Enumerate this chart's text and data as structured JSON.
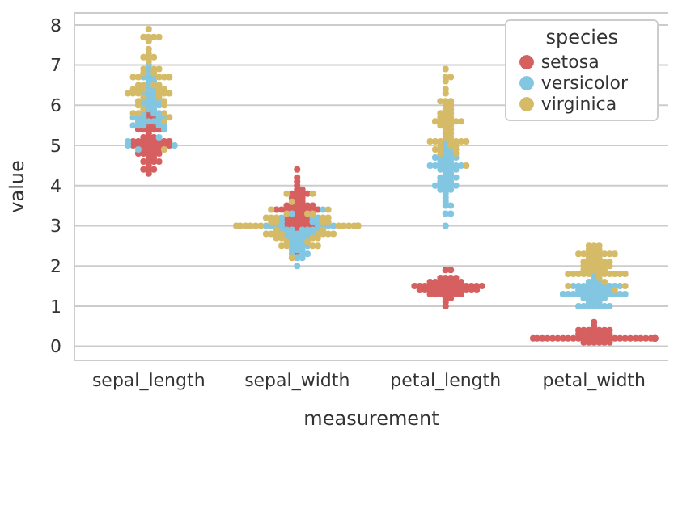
{
  "chart_data": {
    "type": "scatter",
    "xlabel": "measurement",
    "ylabel": "value",
    "legend_title": "species",
    "categories": [
      "sepal_length",
      "sepal_width",
      "petal_length",
      "petal_width"
    ],
    "ylim": [
      -0.35,
      8.3
    ],
    "yticks": [
      0,
      1,
      2,
      3,
      4,
      5,
      6,
      7,
      8
    ],
    "grid": "y",
    "legend": "top right",
    "marker": "circle",
    "series": [
      {
        "name": "setosa",
        "color": "#d65f5f",
        "x": [
          "sepal_length",
          "sepal_length",
          "sepal_length",
          "sepal_length",
          "sepal_length",
          "sepal_length",
          "sepal_length",
          "sepal_length",
          "sepal_length",
          "sepal_length",
          "sepal_length",
          "sepal_length",
          "sepal_length",
          "sepal_length",
          "sepal_length",
          "sepal_length",
          "sepal_length",
          "sepal_length",
          "sepal_length",
          "sepal_length",
          "sepal_length",
          "sepal_length",
          "sepal_length",
          "sepal_length",
          "sepal_length",
          "sepal_length",
          "sepal_length",
          "sepal_length",
          "sepal_length",
          "sepal_length",
          "sepal_length",
          "sepal_length",
          "sepal_length",
          "sepal_length",
          "sepal_length",
          "sepal_length",
          "sepal_length",
          "sepal_length",
          "sepal_length",
          "sepal_length",
          "sepal_length",
          "sepal_length",
          "sepal_length",
          "sepal_length",
          "sepal_length",
          "sepal_length",
          "sepal_length",
          "sepal_length",
          "sepal_length",
          "sepal_length",
          "sepal_width",
          "sepal_width",
          "sepal_width",
          "sepal_width",
          "sepal_width",
          "sepal_width",
          "sepal_width",
          "sepal_width",
          "sepal_width",
          "sepal_width",
          "sepal_width",
          "sepal_width",
          "sepal_width",
          "sepal_width",
          "sepal_width",
          "sepal_width",
          "sepal_width",
          "sepal_width",
          "sepal_width",
          "sepal_width",
          "sepal_width",
          "sepal_width",
          "sepal_width",
          "sepal_width",
          "sepal_width",
          "sepal_width",
          "sepal_width",
          "sepal_width",
          "sepal_width",
          "sepal_width",
          "sepal_width",
          "sepal_width",
          "sepal_width",
          "sepal_width",
          "sepal_width",
          "sepal_width",
          "sepal_width",
          "sepal_width",
          "sepal_width",
          "sepal_width",
          "sepal_width",
          "sepal_width",
          "sepal_width",
          "sepal_width",
          "sepal_width",
          "sepal_width",
          "sepal_width",
          "sepal_width",
          "sepal_width",
          "sepal_width",
          "petal_length",
          "petal_length",
          "petal_length",
          "petal_length",
          "petal_length",
          "petal_length",
          "petal_length",
          "petal_length",
          "petal_length",
          "petal_length",
          "petal_length",
          "petal_length",
          "petal_length",
          "petal_length",
          "petal_length",
          "petal_length",
          "petal_length",
          "petal_length",
          "petal_length",
          "petal_length",
          "petal_length",
          "petal_length",
          "petal_length",
          "petal_length",
          "petal_length",
          "petal_length",
          "petal_length",
          "petal_length",
          "petal_length",
          "petal_length",
          "petal_length",
          "petal_length",
          "petal_length",
          "petal_length",
          "petal_length",
          "petal_length",
          "petal_length",
          "petal_length",
          "petal_length",
          "petal_length",
          "petal_length",
          "petal_length",
          "petal_length",
          "petal_length",
          "petal_length",
          "petal_length",
          "petal_length",
          "petal_length",
          "petal_length",
          "petal_length",
          "petal_width",
          "petal_width",
          "petal_width",
          "petal_width",
          "petal_width",
          "petal_width",
          "petal_width",
          "petal_width",
          "petal_width",
          "petal_width",
          "petal_width",
          "petal_width",
          "petal_width",
          "petal_width",
          "petal_width",
          "petal_width",
          "petal_width",
          "petal_width",
          "petal_width",
          "petal_width",
          "petal_width",
          "petal_width",
          "petal_width",
          "petal_width",
          "petal_width",
          "petal_width",
          "petal_width",
          "petal_width",
          "petal_width",
          "petal_width",
          "petal_width",
          "petal_width",
          "petal_width",
          "petal_width",
          "petal_width",
          "petal_width",
          "petal_width",
          "petal_width",
          "petal_width",
          "petal_width",
          "petal_width",
          "petal_width",
          "petal_width",
          "petal_width",
          "petal_width",
          "petal_width",
          "petal_width",
          "petal_width",
          "petal_width",
          "petal_width"
        ],
        "values": [
          5.1,
          4.9,
          4.7,
          4.6,
          5.0,
          5.4,
          4.6,
          5.0,
          4.4,
          4.9,
          5.4,
          4.8,
          4.8,
          4.3,
          5.8,
          5.7,
          5.4,
          5.1,
          5.7,
          5.1,
          5.4,
          5.1,
          4.6,
          5.1,
          4.8,
          5.0,
          5.0,
          5.2,
          5.2,
          4.7,
          4.8,
          5.4,
          5.2,
          5.5,
          4.9,
          5.0,
          5.5,
          4.9,
          4.4,
          5.1,
          5.0,
          4.5,
          4.4,
          5.0,
          5.1,
          4.8,
          5.1,
          4.6,
          5.3,
          5.0,
          3.5,
          3.0,
          3.2,
          3.1,
          3.6,
          3.9,
          3.4,
          3.4,
          2.9,
          3.1,
          3.7,
          3.4,
          3.0,
          3.0,
          4.0,
          4.4,
          3.9,
          3.5,
          3.8,
          3.8,
          3.4,
          3.7,
          3.6,
          3.3,
          3.4,
          3.0,
          3.4,
          3.5,
          3.4,
          3.2,
          3.1,
          3.4,
          4.1,
          4.2,
          3.1,
          3.2,
          3.5,
          3.1,
          3.0,
          3.4,
          3.5,
          2.3,
          3.2,
          3.5,
          3.8,
          3.0,
          3.8,
          3.2,
          3.7,
          3.3,
          1.4,
          1.4,
          1.3,
          1.5,
          1.4,
          1.7,
          1.4,
          1.5,
          1.4,
          1.5,
          1.5,
          1.6,
          1.4,
          1.1,
          1.2,
          1.5,
          1.3,
          1.4,
          1.7,
          1.5,
          1.7,
          1.5,
          1.0,
          1.7,
          1.9,
          1.6,
          1.6,
          1.5,
          1.4,
          1.6,
          1.6,
          1.5,
          1.5,
          1.4,
          1.5,
          1.2,
          1.3,
          1.5,
          1.3,
          1.5,
          1.3,
          1.3,
          1.3,
          1.6,
          1.9,
          1.4,
          1.6,
          1.4,
          1.5,
          1.4,
          0.2,
          0.2,
          0.2,
          0.2,
          0.2,
          0.4,
          0.3,
          0.2,
          0.2,
          0.1,
          0.2,
          0.2,
          0.1,
          0.1,
          0.2,
          0.4,
          0.4,
          0.3,
          0.3,
          0.3,
          0.2,
          0.4,
          0.2,
          0.5,
          0.2,
          0.2,
          0.4,
          0.2,
          0.2,
          0.2,
          0.2,
          0.4,
          0.1,
          0.2,
          0.1,
          0.2,
          0.2,
          0.1,
          0.2,
          0.2,
          0.3,
          0.3,
          0.2,
          0.6,
          0.4,
          0.3,
          0.2,
          0.2,
          0.2,
          0.2
        ]
      },
      {
        "name": "versicolor",
        "color": "#82c6e2",
        "x": [
          "sepal_length",
          "sepal_length",
          "sepal_length",
          "sepal_length",
          "sepal_length",
          "sepal_length",
          "sepal_length",
          "sepal_length",
          "sepal_length",
          "sepal_length",
          "sepal_length",
          "sepal_length",
          "sepal_length",
          "sepal_length",
          "sepal_length",
          "sepal_length",
          "sepal_length",
          "sepal_length",
          "sepal_length",
          "sepal_length",
          "sepal_length",
          "sepal_length",
          "sepal_length",
          "sepal_length",
          "sepal_length",
          "sepal_length",
          "sepal_length",
          "sepal_length",
          "sepal_length",
          "sepal_length",
          "sepal_length",
          "sepal_length",
          "sepal_length",
          "sepal_length",
          "sepal_length",
          "sepal_length",
          "sepal_length",
          "sepal_length",
          "sepal_length",
          "sepal_length",
          "sepal_length",
          "sepal_length",
          "sepal_length",
          "sepal_length",
          "sepal_length",
          "sepal_length",
          "sepal_length",
          "sepal_length",
          "sepal_length",
          "sepal_length",
          "sepal_width",
          "sepal_width",
          "sepal_width",
          "sepal_width",
          "sepal_width",
          "sepal_width",
          "sepal_width",
          "sepal_width",
          "sepal_width",
          "sepal_width",
          "sepal_width",
          "sepal_width",
          "sepal_width",
          "sepal_width",
          "sepal_width",
          "sepal_width",
          "sepal_width",
          "sepal_width",
          "sepal_width",
          "sepal_width",
          "sepal_width",
          "sepal_width",
          "sepal_width",
          "sepal_width",
          "sepal_width",
          "sepal_width",
          "sepal_width",
          "sepal_width",
          "sepal_width",
          "sepal_width",
          "sepal_width",
          "sepal_width",
          "sepal_width",
          "sepal_width",
          "sepal_width",
          "sepal_width",
          "sepal_width",
          "sepal_width",
          "sepal_width",
          "sepal_width",
          "sepal_width",
          "sepal_width",
          "sepal_width",
          "sepal_width",
          "sepal_width",
          "sepal_width",
          "sepal_width",
          "sepal_width",
          "sepal_width",
          "sepal_width",
          "petal_length",
          "petal_length",
          "petal_length",
          "petal_length",
          "petal_length",
          "petal_length",
          "petal_length",
          "petal_length",
          "petal_length",
          "petal_length",
          "petal_length",
          "petal_length",
          "petal_length",
          "petal_length",
          "petal_length",
          "petal_length",
          "petal_length",
          "petal_length",
          "petal_length",
          "petal_length",
          "petal_length",
          "petal_length",
          "petal_length",
          "petal_length",
          "petal_length",
          "petal_length",
          "petal_length",
          "petal_length",
          "petal_length",
          "petal_length",
          "petal_length",
          "petal_length",
          "petal_length",
          "petal_length",
          "petal_length",
          "petal_length",
          "petal_length",
          "petal_length",
          "petal_length",
          "petal_length",
          "petal_length",
          "petal_length",
          "petal_length",
          "petal_length",
          "petal_length",
          "petal_length",
          "petal_length",
          "petal_length",
          "petal_length",
          "petal_length",
          "petal_width",
          "petal_width",
          "petal_width",
          "petal_width",
          "petal_width",
          "petal_width",
          "petal_width",
          "petal_width",
          "petal_width",
          "petal_width",
          "petal_width",
          "petal_width",
          "petal_width",
          "petal_width",
          "petal_width",
          "petal_width",
          "petal_width",
          "petal_width",
          "petal_width",
          "petal_width",
          "petal_width",
          "petal_width",
          "petal_width",
          "petal_width",
          "petal_width",
          "petal_width",
          "petal_width",
          "petal_width",
          "petal_width",
          "petal_width",
          "petal_width",
          "petal_width",
          "petal_width",
          "petal_width",
          "petal_width",
          "petal_width",
          "petal_width",
          "petal_width",
          "petal_width",
          "petal_width",
          "petal_width",
          "petal_width",
          "petal_width",
          "petal_width",
          "petal_width",
          "petal_width",
          "petal_width",
          "petal_width",
          "petal_width",
          "petal_width"
        ],
        "values": [
          7.0,
          6.4,
          6.9,
          5.5,
          6.5,
          5.7,
          6.3,
          4.9,
          6.6,
          5.2,
          5.0,
          5.9,
          6.0,
          6.1,
          5.6,
          6.7,
          5.6,
          5.8,
          6.2,
          5.6,
          5.9,
          6.1,
          6.3,
          6.1,
          6.4,
          6.6,
          6.8,
          6.7,
          6.0,
          5.7,
          5.5,
          5.5,
          5.8,
          6.0,
          5.4,
          6.0,
          6.7,
          6.3,
          5.6,
          5.5,
          5.5,
          6.1,
          5.8,
          5.0,
          5.6,
          5.7,
          5.7,
          6.2,
          5.1,
          5.7,
          3.2,
          3.2,
          3.1,
          2.3,
          2.8,
          2.8,
          3.3,
          2.4,
          2.9,
          2.7,
          2.0,
          3.0,
          2.2,
          2.9,
          2.9,
          3.1,
          3.0,
          2.7,
          2.2,
          2.5,
          3.2,
          2.8,
          2.5,
          2.8,
          2.9,
          3.0,
          2.8,
          3.0,
          2.9,
          2.6,
          2.4,
          2.4,
          2.7,
          2.7,
          3.0,
          3.4,
          3.1,
          2.3,
          3.0,
          2.5,
          2.6,
          3.0,
          2.6,
          2.3,
          2.7,
          3.0,
          2.9,
          2.9,
          2.5,
          2.8,
          4.7,
          4.5,
          4.9,
          4.0,
          4.6,
          4.5,
          4.7,
          3.3,
          4.6,
          3.9,
          3.5,
          4.2,
          4.0,
          4.7,
          3.6,
          4.4,
          4.5,
          4.1,
          4.5,
          3.9,
          4.8,
          4.0,
          4.9,
          4.7,
          4.3,
          4.4,
          4.8,
          5.0,
          4.5,
          3.5,
          3.8,
          3.7,
          3.9,
          5.1,
          4.5,
          4.5,
          4.7,
          4.4,
          4.1,
          4.0,
          4.4,
          4.6,
          4.0,
          3.3,
          4.2,
          4.2,
          4.2,
          4.3,
          3.0,
          4.1,
          1.4,
          1.5,
          1.5,
          1.3,
          1.5,
          1.3,
          1.6,
          1.0,
          1.3,
          1.4,
          1.0,
          1.5,
          1.0,
          1.4,
          1.3,
          1.4,
          1.5,
          1.0,
          1.5,
          1.1,
          1.8,
          1.3,
          1.5,
          1.2,
          1.3,
          1.4,
          1.4,
          1.7,
          1.5,
          1.0,
          1.1,
          1.0,
          1.2,
          1.6,
          1.5,
          1.6,
          1.5,
          1.3,
          1.3,
          1.3,
          1.2,
          1.4,
          1.2,
          1.0,
          1.3,
          1.2,
          1.3,
          1.3,
          1.1,
          1.3
        ]
      },
      {
        "name": "virginica",
        "color": "#d5bb67",
        "x": [
          "sepal_length",
          "sepal_length",
          "sepal_length",
          "sepal_length",
          "sepal_length",
          "sepal_length",
          "sepal_length",
          "sepal_length",
          "sepal_length",
          "sepal_length",
          "sepal_length",
          "sepal_length",
          "sepal_length",
          "sepal_length",
          "sepal_length",
          "sepal_length",
          "sepal_length",
          "sepal_length",
          "sepal_length",
          "sepal_length",
          "sepal_length",
          "sepal_length",
          "sepal_length",
          "sepal_length",
          "sepal_length",
          "sepal_length",
          "sepal_length",
          "sepal_length",
          "sepal_length",
          "sepal_length",
          "sepal_length",
          "sepal_length",
          "sepal_length",
          "sepal_length",
          "sepal_length",
          "sepal_length",
          "sepal_length",
          "sepal_length",
          "sepal_length",
          "sepal_length",
          "sepal_length",
          "sepal_length",
          "sepal_length",
          "sepal_length",
          "sepal_length",
          "sepal_length",
          "sepal_length",
          "sepal_length",
          "sepal_length",
          "sepal_length",
          "sepal_width",
          "sepal_width",
          "sepal_width",
          "sepal_width",
          "sepal_width",
          "sepal_width",
          "sepal_width",
          "sepal_width",
          "sepal_width",
          "sepal_width",
          "sepal_width",
          "sepal_width",
          "sepal_width",
          "sepal_width",
          "sepal_width",
          "sepal_width",
          "sepal_width",
          "sepal_width",
          "sepal_width",
          "sepal_width",
          "sepal_width",
          "sepal_width",
          "sepal_width",
          "sepal_width",
          "sepal_width",
          "sepal_width",
          "sepal_width",
          "sepal_width",
          "sepal_width",
          "sepal_width",
          "sepal_width",
          "sepal_width",
          "sepal_width",
          "sepal_width",
          "sepal_width",
          "sepal_width",
          "sepal_width",
          "sepal_width",
          "sepal_width",
          "sepal_width",
          "sepal_width",
          "sepal_width",
          "sepal_width",
          "sepal_width",
          "sepal_width",
          "sepal_width",
          "sepal_width",
          "sepal_width",
          "sepal_width",
          "sepal_width",
          "petal_length",
          "petal_length",
          "petal_length",
          "petal_length",
          "petal_length",
          "petal_length",
          "petal_length",
          "petal_length",
          "petal_length",
          "petal_length",
          "petal_length",
          "petal_length",
          "petal_length",
          "petal_length",
          "petal_length",
          "petal_length",
          "petal_length",
          "petal_length",
          "petal_length",
          "petal_length",
          "petal_length",
          "petal_length",
          "petal_length",
          "petal_length",
          "petal_length",
          "petal_length",
          "petal_length",
          "petal_length",
          "petal_length",
          "petal_length",
          "petal_length",
          "petal_length",
          "petal_length",
          "petal_length",
          "petal_length",
          "petal_length",
          "petal_length",
          "petal_length",
          "petal_length",
          "petal_length",
          "petal_length",
          "petal_length",
          "petal_length",
          "petal_length",
          "petal_length",
          "petal_length",
          "petal_length",
          "petal_length",
          "petal_length",
          "petal_length",
          "petal_width",
          "petal_width",
          "petal_width",
          "petal_width",
          "petal_width",
          "petal_width",
          "petal_width",
          "petal_width",
          "petal_width",
          "petal_width",
          "petal_width",
          "petal_width",
          "petal_width",
          "petal_width",
          "petal_width",
          "petal_width",
          "petal_width",
          "petal_width",
          "petal_width",
          "petal_width",
          "petal_width",
          "petal_width",
          "petal_width",
          "petal_width",
          "petal_width",
          "petal_width",
          "petal_width",
          "petal_width",
          "petal_width",
          "petal_width",
          "petal_width",
          "petal_width",
          "petal_width",
          "petal_width",
          "petal_width",
          "petal_width",
          "petal_width",
          "petal_width",
          "petal_width",
          "petal_width",
          "petal_width",
          "petal_width",
          "petal_width",
          "petal_width",
          "petal_width",
          "petal_width",
          "petal_width",
          "petal_width",
          "petal_width",
          "petal_width"
        ],
        "values": [
          6.3,
          5.8,
          7.1,
          6.3,
          6.5,
          7.6,
          4.9,
          7.3,
          6.7,
          7.2,
          6.5,
          6.4,
          6.8,
          5.7,
          5.8,
          6.4,
          6.5,
          7.7,
          7.7,
          6.0,
          6.9,
          5.6,
          7.7,
          6.3,
          6.7,
          7.2,
          6.2,
          6.1,
          6.4,
          7.2,
          7.4,
          7.9,
          6.4,
          6.3,
          6.1,
          7.7,
          6.3,
          6.4,
          6.0,
          6.9,
          6.7,
          6.9,
          5.8,
          6.8,
          6.7,
          6.7,
          6.3,
          6.5,
          6.2,
          5.9,
          3.3,
          2.7,
          3.0,
          2.9,
          3.0,
          3.0,
          2.5,
          2.9,
          2.5,
          3.6,
          3.2,
          2.7,
          3.0,
          2.5,
          2.8,
          3.2,
          3.0,
          3.8,
          2.6,
          2.2,
          3.2,
          2.8,
          2.8,
          2.7,
          3.3,
          3.2,
          2.8,
          3.0,
          2.8,
          3.0,
          2.8,
          3.8,
          2.8,
          2.8,
          2.6,
          3.0,
          3.4,
          3.1,
          3.0,
          3.1,
          3.1,
          3.1,
          2.7,
          3.2,
          3.3,
          3.0,
          2.5,
          3.0,
          3.4,
          3.0,
          6.0,
          5.1,
          5.9,
          5.6,
          5.8,
          6.6,
          4.5,
          6.3,
          5.8,
          6.1,
          5.1,
          5.3,
          5.5,
          5.0,
          5.1,
          5.3,
          5.5,
          6.7,
          6.9,
          5.0,
          5.7,
          4.9,
          6.7,
          4.9,
          5.7,
          6.0,
          4.8,
          4.9,
          5.6,
          5.8,
          6.1,
          6.4,
          5.6,
          5.1,
          5.6,
          6.1,
          5.6,
          5.5,
          4.8,
          5.4,
          5.6,
          5.1,
          5.1,
          5.9,
          5.7,
          5.2,
          5.0,
          5.2,
          5.4,
          5.1,
          2.5,
          1.9,
          2.1,
          1.8,
          2.2,
          2.1,
          1.7,
          1.8,
          1.8,
          2.5,
          2.0,
          1.9,
          2.1,
          2.0,
          2.4,
          2.3,
          1.8,
          2.2,
          2.3,
          1.5,
          2.3,
          2.0,
          2.0,
          1.8,
          2.1,
          1.8,
          1.8,
          1.8,
          2.1,
          1.6,
          1.9,
          2.0,
          2.2,
          1.5,
          1.4,
          2.3,
          2.4,
          1.8,
          1.8,
          2.1,
          2.4,
          2.3,
          1.9,
          2.3,
          2.5,
          2.3,
          1.9,
          2.0,
          2.3,
          1.8
        ]
      }
    ]
  }
}
